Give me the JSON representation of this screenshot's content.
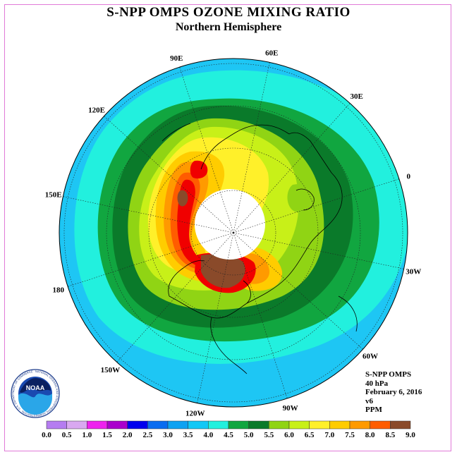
{
  "title": "S-NPP OMPS OZONE MIXING RATIO",
  "subtitle": "Northern Hemisphere",
  "longitude_labels": [
    {
      "text": "90E",
      "deg": 90
    },
    {
      "text": "60E",
      "deg": 60
    },
    {
      "text": "30E",
      "deg": 30
    },
    {
      "text": "0",
      "deg": 0
    },
    {
      "text": "30W",
      "deg": -30
    },
    {
      "text": "60W",
      "deg": -60
    },
    {
      "text": "90W",
      "deg": -90
    },
    {
      "text": "120W",
      "deg": -120
    },
    {
      "text": "150W",
      "deg": -150
    },
    {
      "text": "180",
      "deg": 180
    },
    {
      "text": "150E",
      "deg": 150
    },
    {
      "text": "120E",
      "deg": 120
    }
  ],
  "info": {
    "instrument": "S-NPP OMPS",
    "level": "40 hPa",
    "date": "February 6, 2016",
    "version": "v6",
    "units": "PPM"
  },
  "colorbar": {
    "ticks": [
      "0.0",
      "0.5",
      "1.0",
      "1.5",
      "2.0",
      "2.5",
      "3.0",
      "3.5",
      "4.0",
      "4.5",
      "5.0",
      "5.5",
      "6.0",
      "6.5",
      "7.0",
      "7.5",
      "8.0",
      "8.5",
      "9.0"
    ],
    "colors": [
      "#b57cf0",
      "#d9a8f0",
      "#ee22ee",
      "#aa00cc",
      "#0000ee",
      "#0a6cf0",
      "#0ea2f2",
      "#12c8f6",
      "#22f0de",
      "#11a640",
      "#0a7a2a",
      "#90d414",
      "#c8f018",
      "#fff02a",
      "#ffcc00",
      "#ff9a00",
      "#ff5c00",
      "#f00000",
      "#8a4a2a"
    ]
  },
  "logo": {
    "text": "NOAA",
    "ring_text": "NATIONAL OCEANIC AND ATMOSPHERIC ADMINISTRATION · U.S. DEPARTMENT OF COMMERCE"
  },
  "field": {
    "background_color": "#1ec6f4",
    "night_mask_color": "#ffffff",
    "bands": [
      {
        "value": 3.5,
        "color": "#22f0de"
      },
      {
        "value": 4.0,
        "color": "#11a640"
      },
      {
        "value": 4.5,
        "color": "#0a7a2a"
      },
      {
        "value": 5.0,
        "color": "#90d414"
      },
      {
        "value": 5.5,
        "color": "#c8f018"
      },
      {
        "value": 6.0,
        "color": "#fff02a"
      },
      {
        "value": 6.5,
        "color": "#ffcc00"
      },
      {
        "value": 7.0,
        "color": "#ff9a00"
      },
      {
        "value": 7.5,
        "color": "#ff5c00"
      },
      {
        "value": 8.0,
        "color": "#f00000"
      },
      {
        "value": 8.5,
        "color": "#8a4a2a"
      }
    ]
  }
}
